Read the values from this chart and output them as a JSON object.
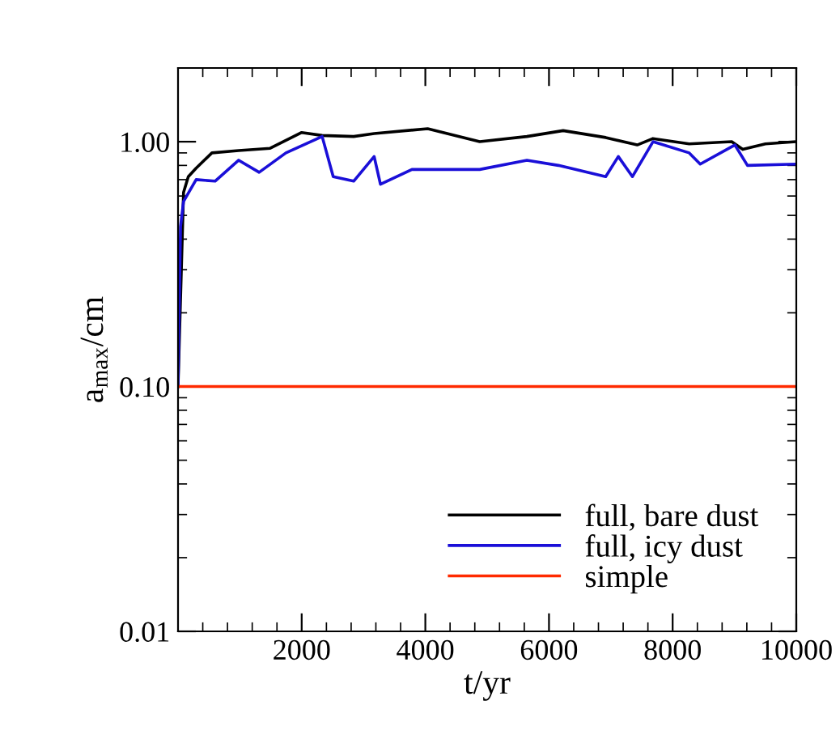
{
  "chart_data": {
    "type": "line",
    "xlabel": "t/yr",
    "ylabel": "a$_{max}$/cm",
    "log": "y",
    "xlim": [
      0,
      10000
    ],
    "xticks": [
      2000,
      4000,
      6000,
      8000,
      10000
    ],
    "ylim": [
      0.01,
      2
    ],
    "yticks": [
      {
        "value": 0.01,
        "label": "0.01"
      },
      {
        "value": 0.1,
        "label": "0.10"
      },
      {
        "value": 1,
        "label": "1.00"
      }
    ],
    "grid": false,
    "legend": "bottom right",
    "marker": "none",
    "line_style": "solid",
    "series": [
      {
        "name": "full, bare dust",
        "color": "#000000",
        "x": [
          0,
          89,
          166,
          293,
          548,
          981,
          1490,
          2000,
          2331,
          2841,
          3172,
          4038,
          4879,
          5643,
          6229,
          6917,
          7427,
          7682,
          8268,
          8955,
          9134,
          9500,
          10000
        ],
        "values": [
          0.1,
          0.62,
          0.72,
          0.78,
          0.9,
          0.92,
          0.94,
          1.09,
          1.06,
          1.05,
          1.08,
          1.13,
          1.0,
          1.05,
          1.11,
          1.04,
          0.97,
          1.03,
          0.98,
          1.0,
          0.93,
          0.98,
          1.0
        ]
      },
      {
        "name": "full, icy dust",
        "color": "#1a0fd8",
        "x": [
          0,
          40,
          89,
          293,
          599,
          981,
          1312,
          1745,
          2331,
          2510,
          2841,
          3172,
          3274,
          3783,
          4879,
          5643,
          6153,
          6917,
          7121,
          7350,
          7682,
          8268,
          8446,
          9006,
          9210,
          10000
        ],
        "values": [
          0.1,
          0.45,
          0.57,
          0.7,
          0.69,
          0.84,
          0.75,
          0.9,
          1.05,
          0.72,
          0.69,
          0.87,
          0.67,
          0.77,
          0.77,
          0.84,
          0.8,
          0.72,
          0.87,
          0.72,
          1.0,
          0.9,
          0.81,
          0.97,
          0.8,
          0.81
        ]
      },
      {
        "name": "simple",
        "color": "#ff2a00",
        "x": [
          0,
          10000
        ],
        "values": [
          0.1,
          0.1
        ]
      }
    ]
  }
}
